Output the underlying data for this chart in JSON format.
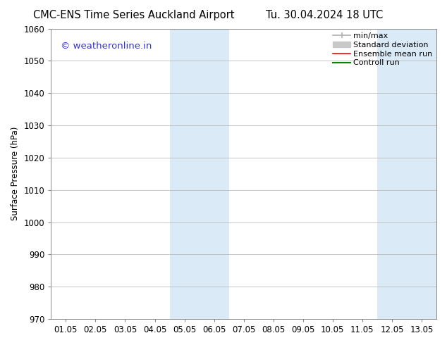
{
  "title_left": "CMC-ENS Time Series Auckland Airport",
  "title_right": "Tu. 30.04.2024 18 UTC",
  "ylabel": "Surface Pressure (hPa)",
  "xlabel": "",
  "ylim": [
    970,
    1060
  ],
  "yticks": [
    970,
    980,
    990,
    1000,
    1010,
    1020,
    1030,
    1040,
    1050,
    1060
  ],
  "xtick_labels": [
    "01.05",
    "02.05",
    "03.05",
    "04.05",
    "05.05",
    "06.05",
    "07.05",
    "08.05",
    "09.05",
    "10.05",
    "11.05",
    "12.05",
    "13.05"
  ],
  "xtick_positions": [
    0,
    1,
    2,
    3,
    4,
    5,
    6,
    7,
    8,
    9,
    10,
    11,
    12
  ],
  "xlim": [
    -0.5,
    12.5
  ],
  "shaded_regions": [
    {
      "xmin": 3.5,
      "xmax": 5.5,
      "color": "#daeaf7"
    },
    {
      "xmin": 10.5,
      "xmax": 12.5,
      "color": "#daeaf7"
    }
  ],
  "watermark_text": "© weatheronline.in",
  "watermark_color": "#3333cc",
  "legend_entries": [
    {
      "label": "min/max",
      "color": "#b0b0b0",
      "lw": 1.2
    },
    {
      "label": "Standard deviation",
      "color": "#c8c8c8",
      "lw": 5
    },
    {
      "label": "Ensemble mean run",
      "color": "#ff0000",
      "lw": 1.2
    },
    {
      "label": "Controll run",
      "color": "#008800",
      "lw": 1.5
    }
  ],
  "bg_color": "#ffffff",
  "grid_color": "#bbbbbb",
  "title_fontsize": 10.5,
  "tick_fontsize": 8.5,
  "ylabel_fontsize": 8.5,
  "watermark_fontsize": 9.5
}
